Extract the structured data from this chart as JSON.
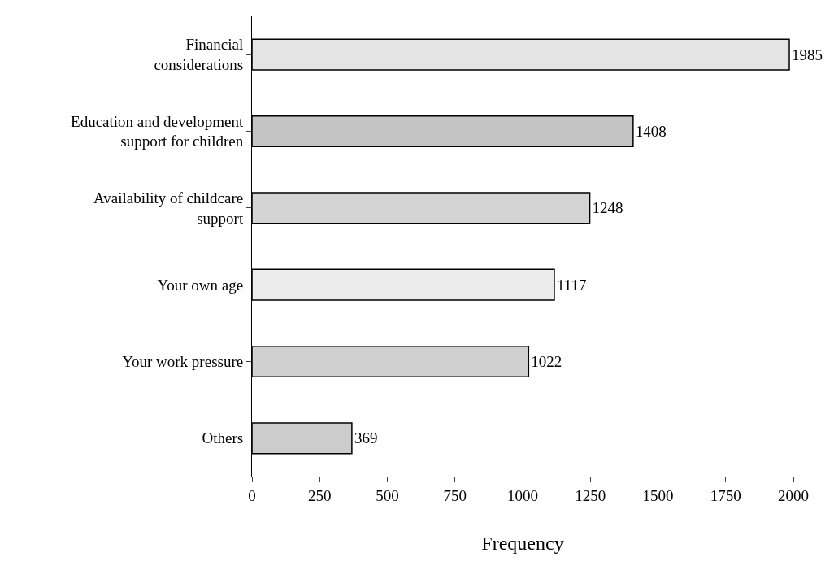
{
  "chart_data": {
    "type": "bar",
    "orientation": "horizontal",
    "xlabel": "Frequency",
    "categories": [
      "Financial\nconsiderations",
      "Education and development\nsupport for children",
      "Availability of childcare\nsupport",
      "Your own age",
      "Your work pressure",
      "Others"
    ],
    "values": [
      1985,
      1408,
      1248,
      1117,
      1022,
      369
    ],
    "colors": [
      "#e4e4e4",
      "#c4c4c4",
      "#d4d4d4",
      "#ececec",
      "#d0d0d0",
      "#cccccc"
    ],
    "xlim": [
      0,
      2000
    ],
    "xticks": [
      0,
      250,
      500,
      750,
      1000,
      1250,
      1500,
      1750,
      2000
    ],
    "data_labels": true,
    "grid": false,
    "legend": false
  }
}
